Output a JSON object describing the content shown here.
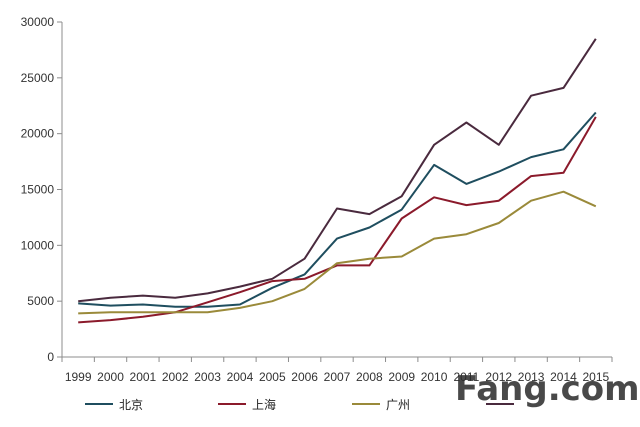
{
  "chart_data": {
    "type": "line",
    "title": "",
    "xlabel": "",
    "ylabel": "",
    "categories": [
      "1999",
      "2000",
      "2001",
      "2002",
      "2003",
      "2004",
      "2005",
      "2006",
      "2007",
      "2008",
      "2009",
      "2010",
      "2011",
      "2012",
      "2013",
      "2014",
      "2015"
    ],
    "ylim": [
      0,
      30000
    ],
    "yticks": [
      "0",
      "5000",
      "10000",
      "15000",
      "20000",
      "25000",
      "30000"
    ],
    "grid": false,
    "legend_position": "bottom",
    "series": [
      {
        "name": "北京",
        "color": "#1f4e5f",
        "values": [
          4800,
          4600,
          4700,
          4500,
          4500,
          4700,
          6200,
          7400,
          10600,
          11600,
          13200,
          17200,
          15500,
          16600,
          17900,
          18600,
          21900
        ]
      },
      {
        "name": "上海",
        "color": "#8b1a2b",
        "values": [
          3100,
          3300,
          3600,
          4000,
          4900,
          5800,
          6800,
          7000,
          8200,
          8200,
          12400,
          14300,
          13600,
          14000,
          16200,
          16500,
          21500
        ]
      },
      {
        "name": "广州",
        "color": "#9a8a3a",
        "values": [
          3900,
          4000,
          4000,
          4000,
          4000,
          4400,
          5000,
          6100,
          8400,
          8800,
          9000,
          10600,
          11000,
          12000,
          14000,
          14800,
          13500
        ]
      },
      {
        "name": "",
        "color": "#4a2a3e",
        "values": [
          5000,
          5300,
          5500,
          5300,
          5700,
          6300,
          7000,
          8800,
          13300,
          12800,
          14400,
          19000,
          21000,
          19000,
          23400,
          24100,
          28500
        ]
      }
    ]
  },
  "watermark": {
    "text": "Fang.com",
    "color": "#2a2a2a"
  }
}
